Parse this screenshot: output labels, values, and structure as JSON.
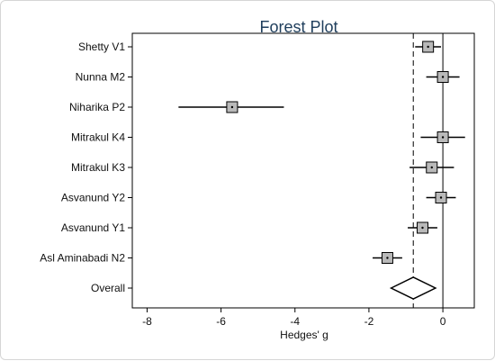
{
  "chart_data": {
    "type": "forest",
    "title": "Forest Plot",
    "xlabel": "Hedges' g",
    "xlim": [
      -8.4,
      0.85
    ],
    "xticks": [
      -8,
      -6,
      -4,
      -2,
      0
    ],
    "xtick_labels": [
      "-8",
      "-6",
      "-4",
      "-2",
      "0"
    ],
    "reference_line": 0,
    "overall_line": -0.8,
    "studies": [
      {
        "label": "Shetty V1",
        "estimate": -0.4,
        "ci": [
          -0.75,
          -0.05
        ]
      },
      {
        "label": "Nunna M2",
        "estimate": 0.0,
        "ci": [
          -0.45,
          0.45
        ]
      },
      {
        "label": "Niharika P2",
        "estimate": -5.7,
        "ci": [
          -7.15,
          -4.3
        ]
      },
      {
        "label": "Mitrakul K4",
        "estimate": 0.0,
        "ci": [
          -0.6,
          0.6
        ]
      },
      {
        "label": "Mitrakul K3",
        "estimate": -0.3,
        "ci": [
          -0.9,
          0.3
        ]
      },
      {
        "label": "Asvanund Y2",
        "estimate": -0.05,
        "ci": [
          -0.45,
          0.35
        ]
      },
      {
        "label": "Asvanund Y1",
        "estimate": -0.55,
        "ci": [
          -0.95,
          -0.15
        ]
      },
      {
        "label": "Asl Aminabadi N2",
        "estimate": -1.5,
        "ci": [
          -1.9,
          -1.1
        ]
      }
    ],
    "overall": {
      "label": "Overall",
      "estimate": -0.8,
      "ci": [
        -1.4,
        -0.2
      ]
    }
  }
}
